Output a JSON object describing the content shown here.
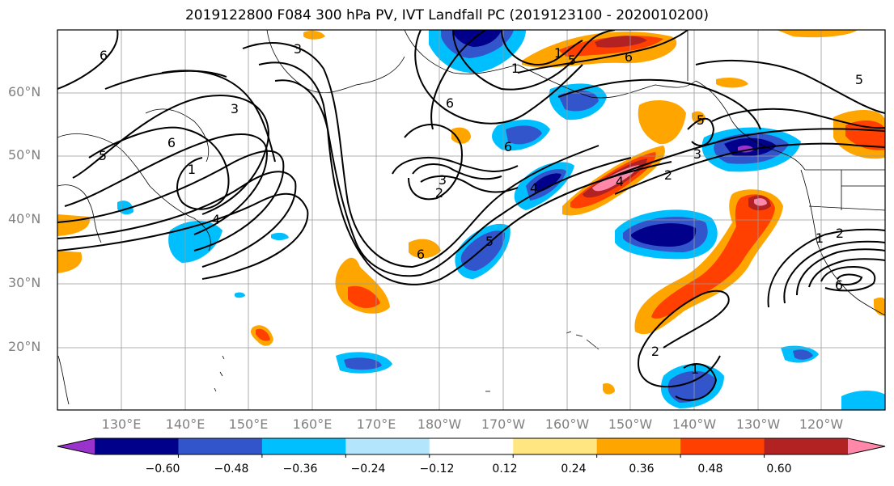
{
  "title": "2019122800 F084 300 hPa PV, IVT Landfall PC (2019123100 - 2020010200)",
  "lat_labels": [
    "60°N",
    "50°N",
    "40°N",
    "30°N",
    "20°N"
  ],
  "lon_labels": [
    "130°E",
    "140°E",
    "150°E",
    "160°E",
    "170°E",
    "180°W",
    "170°W",
    "160°W",
    "150°W",
    "140°W",
    "130°W",
    "120°W"
  ],
  "colorbar": {
    "colors": [
      "#9933cc",
      "#00008b",
      "#3355cc",
      "#00bfff",
      "#b3e5fc",
      "#ffffff",
      "#ffe680",
      "#ffa500",
      "#ff4000",
      "#b22222",
      "#ff88aa"
    ],
    "tick_labels": [
      "−0.60",
      "−0.48",
      "−0.36",
      "−0.24",
      "−0.12",
      "0.12",
      "0.24",
      "0.36",
      "0.48",
      "0.60"
    ]
  },
  "contour_labels": [
    "6",
    "3",
    "1",
    "6",
    "3",
    "1",
    "5",
    "6",
    "6",
    "5",
    "3",
    "2",
    "5",
    "6",
    "3",
    "2",
    "1",
    "2",
    "4",
    "5",
    "6",
    "6",
    "1",
    "4",
    "5",
    "4",
    "1",
    "2"
  ]
}
